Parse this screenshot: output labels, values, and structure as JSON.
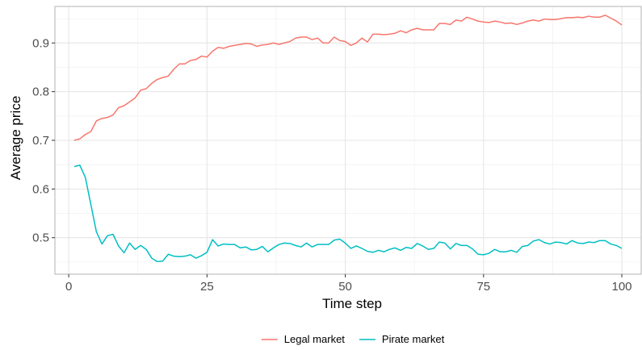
{
  "chart_data": {
    "type": "line",
    "title": "",
    "xlabel": "Time step",
    "ylabel": "Average price",
    "xlim": [
      -2.5,
      103.5
    ],
    "ylim": [
      0.425,
      0.975
    ],
    "x_ticks": [
      0,
      25,
      50,
      75,
      100
    ],
    "x_tick_labels": [
      "0",
      "25",
      "50",
      "75",
      "100"
    ],
    "y_ticks": [
      0.5,
      0.6,
      0.7,
      0.8,
      0.9
    ],
    "y_tick_labels": [
      "0.5",
      "0.6",
      "0.7",
      "0.8",
      "0.9"
    ],
    "grid": true,
    "legend_position": "bottom",
    "x": [
      1,
      2,
      3,
      4,
      5,
      6,
      7,
      8,
      9,
      10,
      11,
      12,
      13,
      14,
      15,
      16,
      17,
      18,
      19,
      20,
      21,
      22,
      23,
      24,
      25,
      26,
      27,
      28,
      29,
      30,
      31,
      32,
      33,
      34,
      35,
      36,
      37,
      38,
      39,
      40,
      41,
      42,
      43,
      44,
      45,
      46,
      47,
      48,
      49,
      50,
      51,
      52,
      53,
      54,
      55,
      56,
      57,
      58,
      59,
      60,
      61,
      62,
      63,
      64,
      65,
      66,
      67,
      68,
      69,
      70,
      71,
      72,
      73,
      74,
      75,
      76,
      77,
      78,
      79,
      80,
      81,
      82,
      83,
      84,
      85,
      86,
      87,
      88,
      89,
      90,
      91,
      92,
      93,
      94,
      95,
      96,
      97,
      98,
      99,
      100
    ],
    "series": [
      {
        "name": "Legal market",
        "color": "#f8766d",
        "values": [
          0.7,
          0.703,
          0.712,
          0.718,
          0.74,
          0.745,
          0.747,
          0.752,
          0.767,
          0.771,
          0.779,
          0.787,
          0.803,
          0.806,
          0.817,
          0.825,
          0.829,
          0.832,
          0.846,
          0.857,
          0.857,
          0.864,
          0.866,
          0.873,
          0.871,
          0.883,
          0.891,
          0.889,
          0.893,
          0.895,
          0.897,
          0.899,
          0.898,
          0.893,
          0.896,
          0.897,
          0.9,
          0.897,
          0.9,
          0.903,
          0.91,
          0.912,
          0.912,
          0.907,
          0.91,
          0.9,
          0.9,
          0.912,
          0.905,
          0.903,
          0.895,
          0.9,
          0.91,
          0.902,
          0.918,
          0.918,
          0.917,
          0.918,
          0.92,
          0.925,
          0.921,
          0.927,
          0.93,
          0.927,
          0.927,
          0.927,
          0.94,
          0.94,
          0.938,
          0.947,
          0.945,
          0.953,
          0.949,
          0.945,
          0.943,
          0.942,
          0.945,
          0.943,
          0.94,
          0.941,
          0.938,
          0.941,
          0.945,
          0.947,
          0.945,
          0.949,
          0.948,
          0.948,
          0.95,
          0.952,
          0.952,
          0.953,
          0.952,
          0.955,
          0.953,
          0.953,
          0.957,
          0.951,
          0.945,
          0.937
        ]
      },
      {
        "name": "Pirate market",
        "color": "#00bfc4",
        "values": [
          0.646,
          0.649,
          0.624,
          0.568,
          0.512,
          0.487,
          0.504,
          0.507,
          0.483,
          0.469,
          0.489,
          0.476,
          0.484,
          0.476,
          0.458,
          0.451,
          0.452,
          0.466,
          0.462,
          0.461,
          0.462,
          0.465,
          0.458,
          0.463,
          0.47,
          0.496,
          0.483,
          0.487,
          0.486,
          0.486,
          0.479,
          0.481,
          0.475,
          0.476,
          0.482,
          0.471,
          0.479,
          0.486,
          0.489,
          0.488,
          0.484,
          0.481,
          0.489,
          0.481,
          0.486,
          0.486,
          0.486,
          0.495,
          0.497,
          0.489,
          0.478,
          0.483,
          0.478,
          0.472,
          0.47,
          0.474,
          0.471,
          0.476,
          0.479,
          0.474,
          0.48,
          0.478,
          0.488,
          0.483,
          0.476,
          0.478,
          0.491,
          0.489,
          0.477,
          0.488,
          0.484,
          0.484,
          0.477,
          0.466,
          0.465,
          0.468,
          0.476,
          0.471,
          0.471,
          0.474,
          0.47,
          0.482,
          0.484,
          0.493,
          0.496,
          0.49,
          0.487,
          0.491,
          0.49,
          0.487,
          0.494,
          0.489,
          0.488,
          0.491,
          0.49,
          0.494,
          0.494,
          0.487,
          0.484,
          0.478
        ]
      }
    ]
  },
  "style": {
    "panel_background": "#ffffff",
    "panel_border": "#b3b3b3",
    "grid_major": "#e5e5e5",
    "grid_minor": "#f2f2f2"
  }
}
